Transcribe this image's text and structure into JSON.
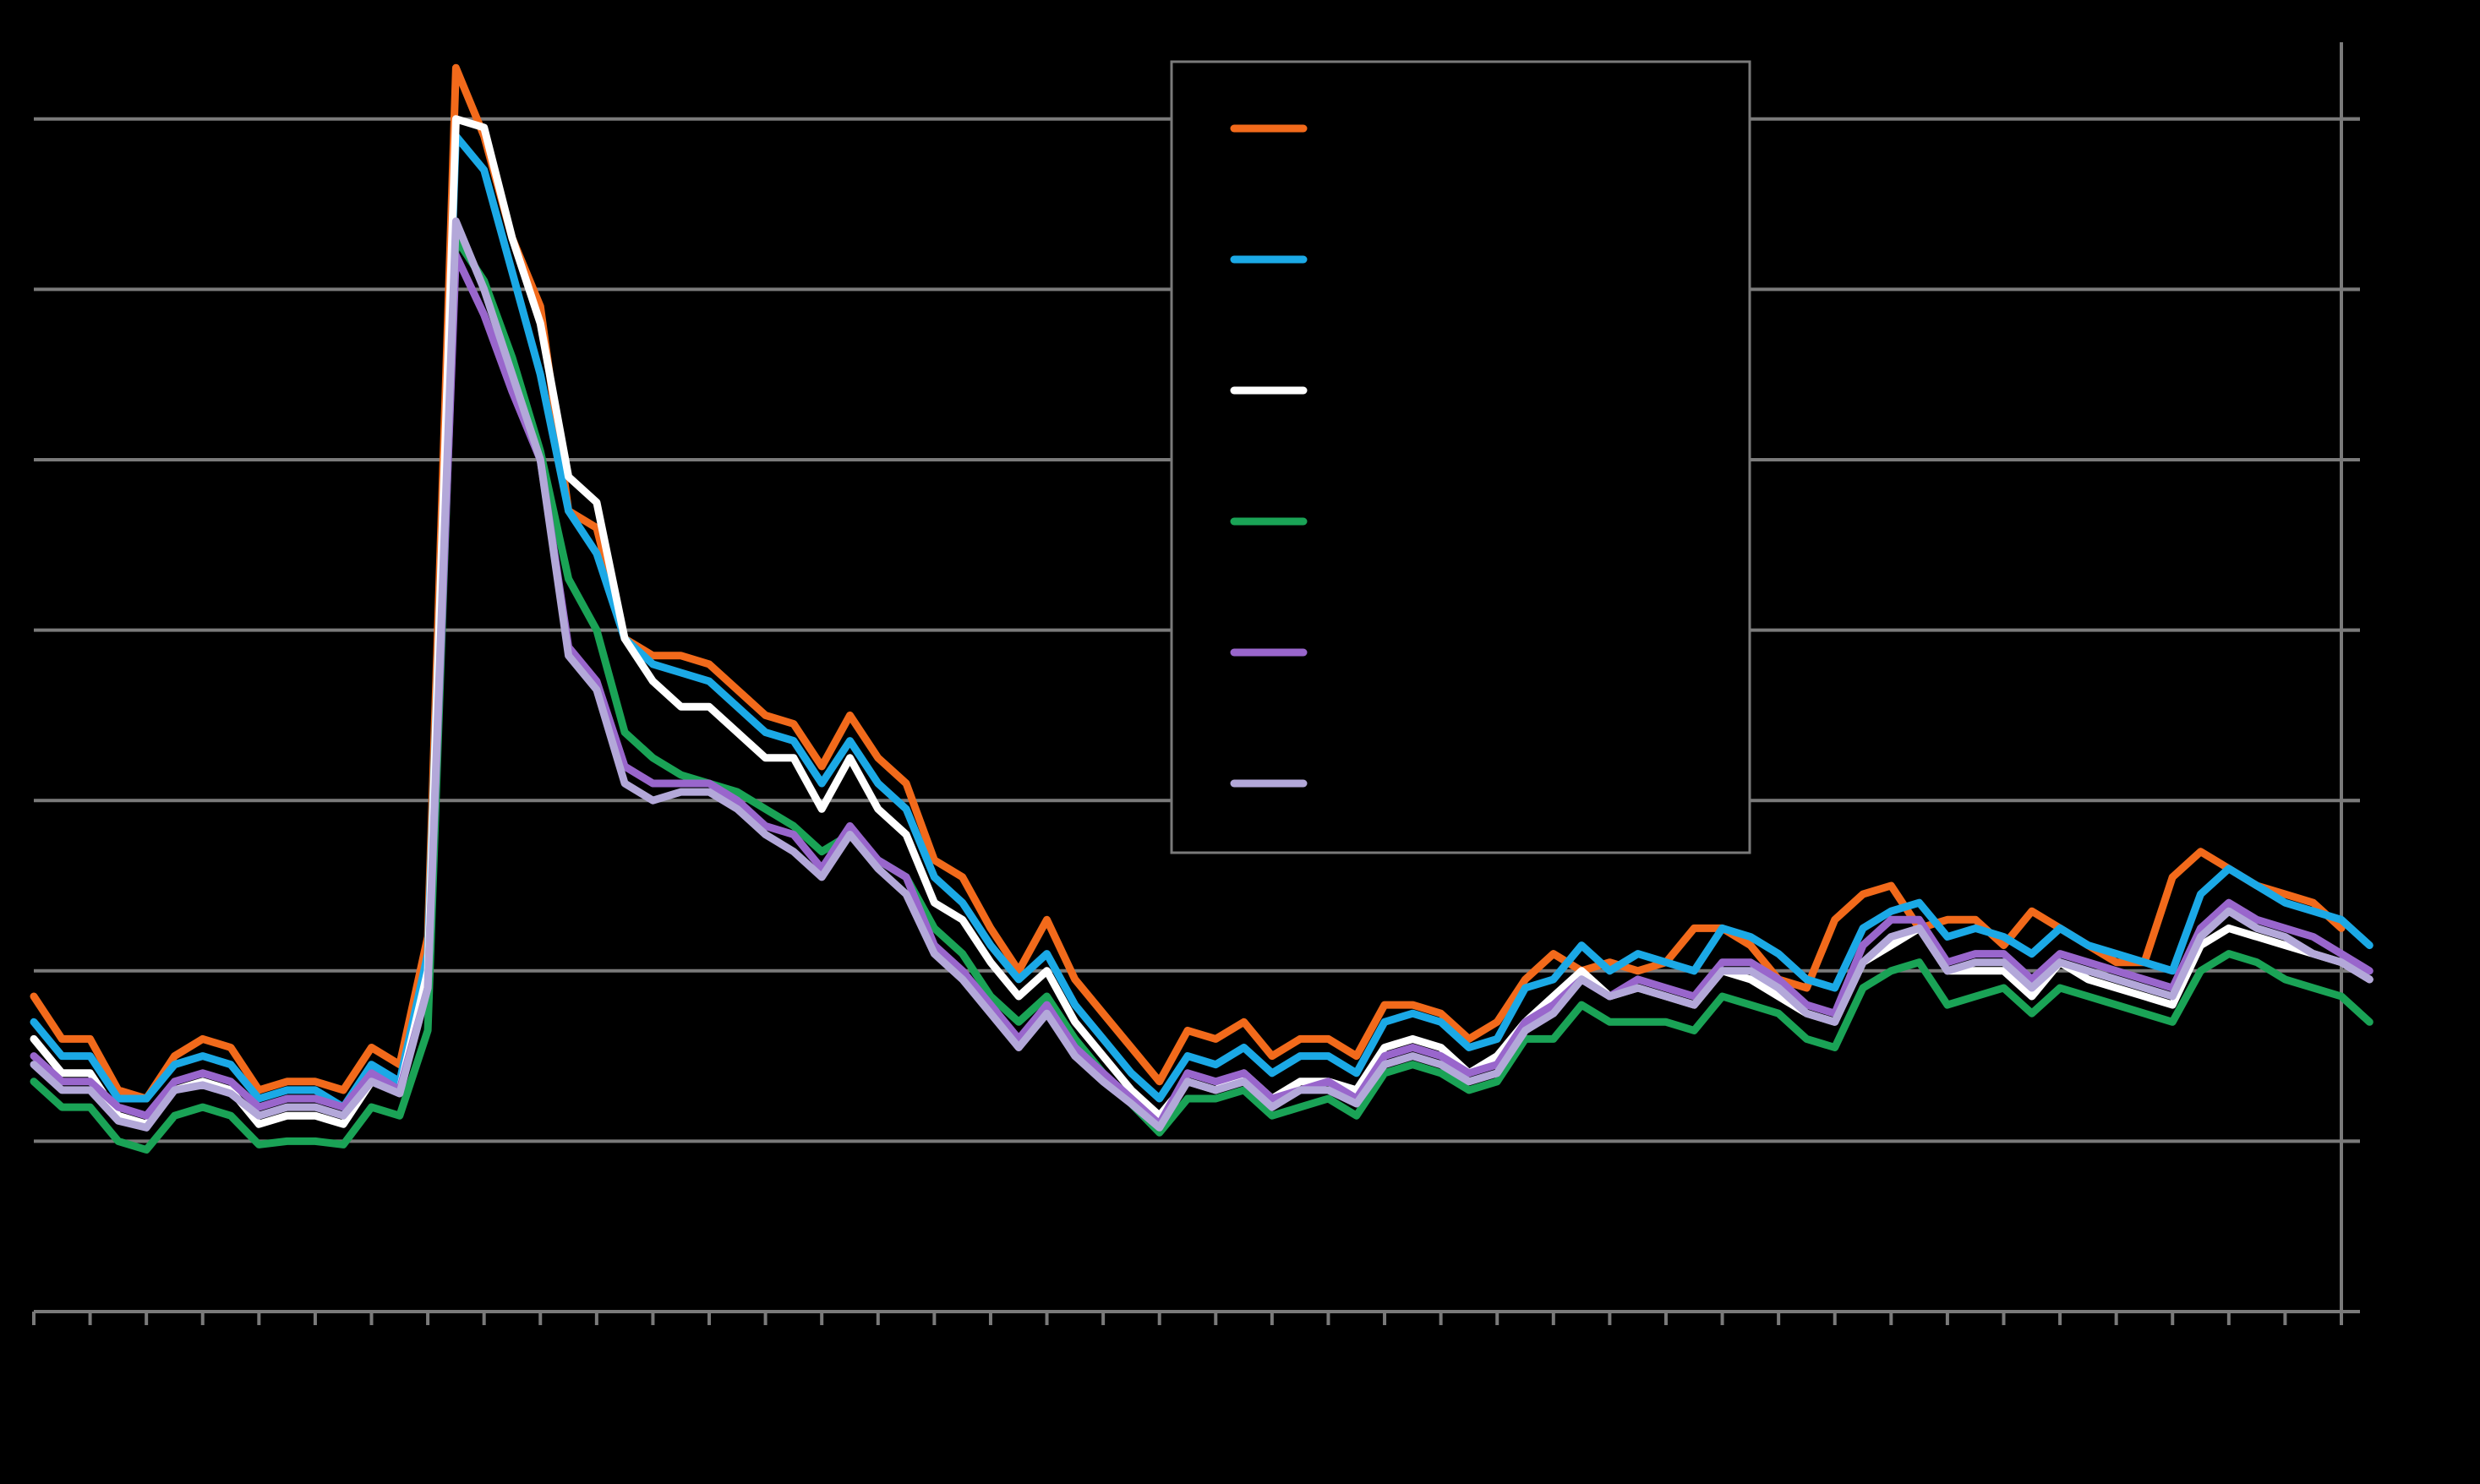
{
  "chart_data": {
    "type": "line",
    "title": "",
    "xlabel": "",
    "ylabel": "",
    "ylim": [
      0,
      7.5
    ],
    "grid": true,
    "legend_placement": "top-center",
    "series": [
      {
        "color": "#f26a1b",
        "values": [
          1.85,
          1.6,
          1.6,
          1.3,
          1.25,
          1.5,
          1.6,
          1.55,
          1.3,
          1.35,
          1.35,
          1.3,
          1.55,
          1.45,
          2.2,
          7.3,
          6.9,
          6.3,
          5.9,
          4.7,
          4.6,
          3.95,
          3.85,
          3.85,
          3.8,
          3.65,
          3.5,
          3.45,
          3.2,
          3.5,
          3.25,
          3.1,
          2.65,
          2.55,
          2.25,
          2.0,
          2.3,
          1.95,
          1.75,
          1.55,
          1.35,
          1.65,
          1.6,
          1.7,
          1.5,
          1.6,
          1.6,
          1.5,
          1.8,
          1.8,
          1.75,
          1.6,
          1.7,
          1.95,
          2.1,
          2.0,
          2.05,
          2.0,
          2.05,
          2.25,
          2.25,
          2.15,
          1.95,
          1.9,
          2.3,
          2.45,
          2.5,
          2.25,
          2.3,
          2.3,
          2.15,
          2.35,
          2.25,
          2.15,
          2.05,
          2.05,
          2.55,
          2.7,
          2.6,
          2.5,
          2.45,
          2.4,
          2.25
        ]
      },
      {
        "color": "#1ba9e6",
        "values": [
          1.7,
          1.5,
          1.5,
          1.25,
          1.25,
          1.45,
          1.5,
          1.45,
          1.25,
          1.3,
          1.3,
          1.2,
          1.45,
          1.35,
          2.1,
          6.9,
          6.7,
          6.1,
          5.5,
          4.7,
          4.45,
          3.95,
          3.8,
          3.75,
          3.7,
          3.55,
          3.4,
          3.35,
          3.1,
          3.35,
          3.1,
          2.95,
          2.55,
          2.4,
          2.15,
          1.95,
          2.1,
          1.8,
          1.6,
          1.4,
          1.25,
          1.5,
          1.45,
          1.55,
          1.4,
          1.5,
          1.5,
          1.4,
          1.7,
          1.75,
          1.7,
          1.55,
          1.6,
          1.9,
          1.95,
          2.15,
          2.0,
          2.1,
          2.05,
          2.0,
          2.25,
          2.2,
          2.1,
          1.95,
          1.9,
          2.25,
          2.35,
          2.4,
          2.2,
          2.25,
          2.2,
          2.1,
          2.25,
          2.15,
          2.1,
          2.05,
          2.0,
          2.45,
          2.6,
          2.5,
          2.4,
          2.35,
          2.3,
          2.15
        ]
      },
      {
        "color": "#ffffff",
        "values": [
          1.6,
          1.4,
          1.4,
          1.15,
          1.1,
          1.3,
          1.35,
          1.3,
          1.1,
          1.15,
          1.15,
          1.1,
          1.35,
          1.3,
          2.0,
          7.0,
          6.95,
          6.3,
          5.8,
          4.9,
          4.75,
          3.95,
          3.7,
          3.55,
          3.55,
          3.4,
          3.25,
          3.25,
          2.95,
          3.25,
          2.95,
          2.8,
          2.4,
          2.3,
          2.05,
          1.85,
          2.0,
          1.7,
          1.5,
          1.3,
          1.15,
          1.35,
          1.3,
          1.4,
          1.25,
          1.35,
          1.35,
          1.3,
          1.55,
          1.6,
          1.55,
          1.4,
          1.5,
          1.7,
          1.85,
          2.0,
          1.85,
          1.9,
          1.85,
          1.8,
          2.0,
          1.95,
          1.85,
          1.75,
          1.7,
          2.05,
          2.15,
          2.25,
          2.0,
          2.0,
          2.0,
          1.85,
          2.05,
          1.95,
          1.9,
          1.85,
          1.8,
          2.15,
          2.25,
          2.2,
          2.15,
          2.1,
          2.05,
          1.95
        ]
      },
      {
        "color": "#1aa356",
        "values": [
          1.35,
          1.2,
          1.2,
          1.0,
          0.95,
          1.15,
          1.2,
          1.15,
          0.98,
          1.0,
          1.0,
          0.98,
          1.2,
          1.15,
          1.65,
          6.3,
          6.05,
          5.6,
          5.05,
          4.3,
          4.0,
          3.4,
          3.25,
          3.15,
          3.1,
          3.05,
          2.95,
          2.85,
          2.7,
          2.8,
          2.65,
          2.55,
          2.25,
          2.1,
          1.85,
          1.7,
          1.85,
          1.6,
          1.4,
          1.22,
          1.05,
          1.25,
          1.25,
          1.3,
          1.15,
          1.2,
          1.25,
          1.15,
          1.4,
          1.45,
          1.4,
          1.3,
          1.35,
          1.6,
          1.6,
          1.8,
          1.7,
          1.7,
          1.7,
          1.65,
          1.85,
          1.8,
          1.75,
          1.6,
          1.55,
          1.9,
          2.0,
          2.05,
          1.8,
          1.85,
          1.9,
          1.75,
          1.9,
          1.85,
          1.8,
          1.75,
          1.7,
          2.0,
          2.1,
          2.05,
          1.95,
          1.9,
          1.85,
          1.7
        ]
      },
      {
        "color": "#9966cc",
        "values": [
          1.5,
          1.35,
          1.35,
          1.2,
          1.15,
          1.35,
          1.4,
          1.35,
          1.2,
          1.25,
          1.25,
          1.2,
          1.4,
          1.3,
          1.9,
          6.2,
          5.85,
          5.4,
          5.0,
          3.9,
          3.7,
          3.2,
          3.1,
          3.1,
          3.1,
          3.0,
          2.85,
          2.8,
          2.6,
          2.85,
          2.65,
          2.55,
          2.15,
          2.0,
          1.8,
          1.6,
          1.8,
          1.55,
          1.4,
          1.25,
          1.1,
          1.4,
          1.35,
          1.4,
          1.25,
          1.3,
          1.35,
          1.25,
          1.5,
          1.55,
          1.5,
          1.4,
          1.45,
          1.7,
          1.8,
          1.95,
          1.85,
          1.95,
          1.9,
          1.85,
          2.05,
          2.05,
          1.95,
          1.8,
          1.75,
          2.15,
          2.3,
          2.3,
          2.05,
          2.1,
          2.1,
          1.95,
          2.1,
          2.05,
          2.0,
          1.95,
          1.9,
          2.25,
          2.4,
          2.3,
          2.25,
          2.2,
          2.1,
          2.0
        ]
      },
      {
        "color": "#b3a8d9",
        "values": [
          1.45,
          1.3,
          1.3,
          1.12,
          1.08,
          1.3,
          1.33,
          1.28,
          1.15,
          1.2,
          1.2,
          1.15,
          1.35,
          1.28,
          1.9,
          6.4,
          6.0,
          5.5,
          5.0,
          3.85,
          3.65,
          3.1,
          3.0,
          3.05,
          3.05,
          2.95,
          2.8,
          2.7,
          2.55,
          2.8,
          2.6,
          2.45,
          2.1,
          1.95,
          1.75,
          1.55,
          1.75,
          1.5,
          1.35,
          1.22,
          1.08,
          1.35,
          1.3,
          1.35,
          1.2,
          1.3,
          1.3,
          1.22,
          1.45,
          1.5,
          1.45,
          1.35,
          1.4,
          1.65,
          1.75,
          1.95,
          1.85,
          1.9,
          1.85,
          1.8,
          2.0,
          2.0,
          1.9,
          1.75,
          1.7,
          2.05,
          2.2,
          2.25,
          2.0,
          2.05,
          2.05,
          1.9,
          2.05,
          2.0,
          1.95,
          1.9,
          1.85,
          2.2,
          2.35,
          2.25,
          2.2,
          2.1,
          2.05,
          1.95
        ]
      }
    ]
  }
}
